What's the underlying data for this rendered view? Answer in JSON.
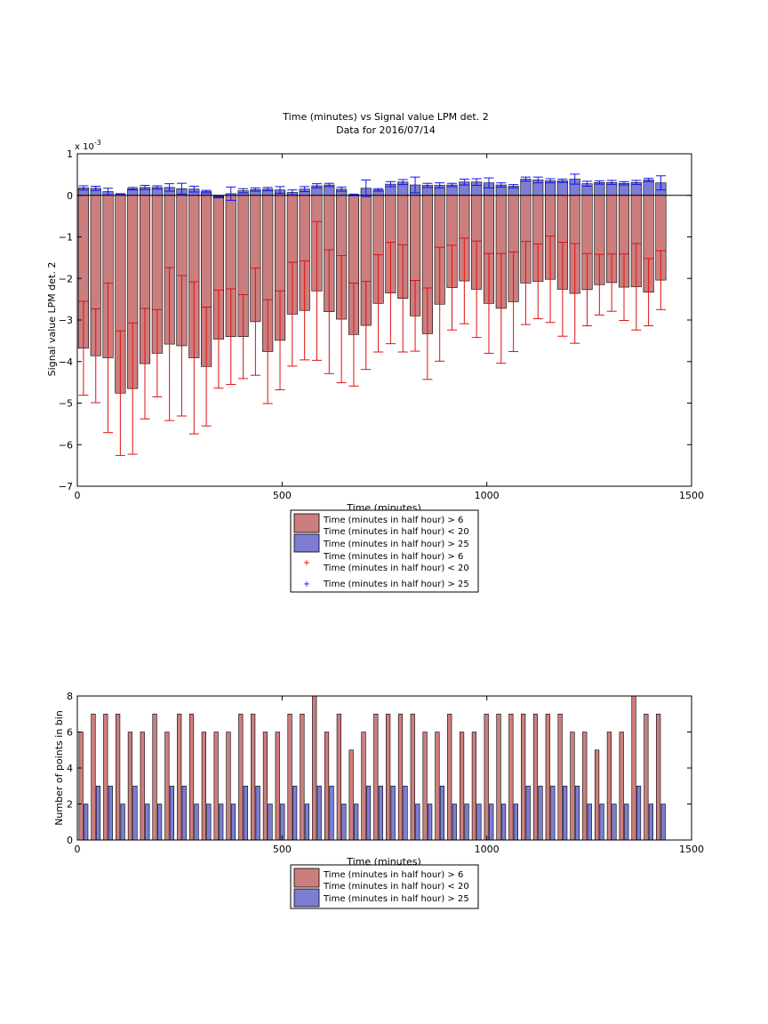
{
  "colors": {
    "red_fill": "#cc7e7e",
    "blue_fill": "#7d7dd4",
    "red_err": "#dd1111",
    "blue_err": "#1111ee",
    "edge": "#000000"
  },
  "chart_data": [
    {
      "type": "bar",
      "title": "Time (minutes) vs Signal value LPM det. 2",
      "subtitle": "Data for 2016/07/14",
      "xlabel": "Time (minutes)",
      "ylabel": "Signal value LPM det. 2",
      "y_multiplier": "x 10",
      "y_exponent": "-3",
      "xlim": [
        0,
        1500
      ],
      "ylim": [
        -7,
        1
      ],
      "xticks": [
        0,
        500,
        1000,
        1500
      ],
      "yticks": [
        -7,
        -6,
        -5,
        -4,
        -3,
        -2,
        -1,
        0,
        1
      ],
      "grid": false,
      "legend_position": "below",
      "legend": [
        {
          "kind": "patch",
          "color": "red",
          "lines": [
            "Time (minutes in half hour) > 6",
            "Time (minutes in half hour) < 20"
          ]
        },
        {
          "kind": "patch",
          "color": "blue",
          "lines": [
            "Time (minutes in half hour) > 25"
          ]
        },
        {
          "kind": "marker",
          "color": "red",
          "lines": [
            "Time (minutes in half hour) > 6",
            "Time (minutes in half hour) < 20"
          ]
        },
        {
          "kind": "marker",
          "color": "blue",
          "lines": [
            "Time (minutes in half hour) > 25"
          ]
        }
      ],
      "bar_width": 25,
      "x": [
        15,
        45,
        75,
        105,
        135,
        165,
        195,
        225,
        255,
        285,
        315,
        345,
        375,
        405,
        435,
        465,
        495,
        525,
        555,
        585,
        615,
        645,
        675,
        705,
        735,
        765,
        795,
        825,
        855,
        885,
        915,
        945,
        975,
        1005,
        1035,
        1065,
        1095,
        1125,
        1155,
        1185,
        1215,
        1245,
        1275,
        1305,
        1335,
        1365,
        1395,
        1425
      ],
      "series": [
        {
          "name": "Time (minutes in half hour) > 6 / Time (minutes in half hour) < 20",
          "color": "red",
          "values": [
            -3.68,
            -3.86,
            -3.91,
            -4.76,
            -4.65,
            -4.05,
            -3.8,
            -3.58,
            -3.62,
            -3.91,
            -4.12,
            -3.46,
            -3.4,
            -3.4,
            -3.04,
            -3.76,
            -3.49,
            -2.86,
            -2.77,
            -2.3,
            -2.8,
            -2.98,
            -3.35,
            -3.13,
            -2.6,
            -2.35,
            -2.48,
            -2.9,
            -3.33,
            -2.62,
            -2.22,
            -2.06,
            -2.26,
            -2.6,
            -2.72,
            -2.56,
            -2.11,
            -2.07,
            -2.02,
            -2.26,
            -2.36,
            -2.27,
            -2.15,
            -2.1,
            -2.21,
            -2.2,
            -2.33,
            -2.04
          ],
          "err": [
            1.13,
            1.13,
            1.8,
            1.5,
            1.58,
            1.33,
            1.05,
            1.84,
            1.69,
            1.83,
            1.43,
            1.18,
            1.15,
            1.01,
            1.29,
            1.25,
            1.19,
            1.25,
            1.19,
            1.67,
            1.49,
            1.53,
            1.24,
            1.06,
            1.17,
            1.22,
            1.29,
            0.85,
            1.1,
            1.37,
            1.02,
            1.03,
            1.16,
            1.2,
            1.32,
            1.2,
            1.0,
            0.9,
            1.04,
            1.13,
            1.2,
            0.87,
            0.73,
            0.69,
            0.8,
            1.04,
            0.81,
            0.71
          ]
        },
        {
          "name": "Time (minutes in half hour) > 25",
          "color": "blue",
          "values": [
            0.18,
            0.17,
            0.09,
            0.02,
            0.16,
            0.19,
            0.19,
            0.19,
            0.16,
            0.15,
            0.09,
            -0.04,
            0.04,
            0.11,
            0.14,
            0.15,
            0.13,
            0.07,
            0.15,
            0.23,
            0.25,
            0.15,
            0.01,
            0.17,
            0.13,
            0.27,
            0.32,
            0.25,
            0.24,
            0.24,
            0.25,
            0.32,
            0.32,
            0.3,
            0.25,
            0.22,
            0.39,
            0.37,
            0.35,
            0.35,
            0.39,
            0.28,
            0.31,
            0.31,
            0.29,
            0.31,
            0.37,
            0.3
          ],
          "err": [
            0.05,
            0.05,
            0.08,
            0.02,
            0.03,
            0.05,
            0.04,
            0.09,
            0.13,
            0.07,
            0.03,
            0.02,
            0.16,
            0.05,
            0.04,
            0.04,
            0.08,
            0.06,
            0.06,
            0.05,
            0.04,
            0.05,
            0.02,
            0.2,
            0.03,
            0.06,
            0.06,
            0.19,
            0.05,
            0.06,
            0.04,
            0.07,
            0.08,
            0.12,
            0.05,
            0.04,
            0.05,
            0.07,
            0.05,
            0.04,
            0.12,
            0.06,
            0.04,
            0.05,
            0.04,
            0.05,
            0.04,
            0.17
          ]
        }
      ]
    },
    {
      "type": "bar",
      "title": "",
      "xlabel": "Time (minutes)",
      "ylabel": "Number of points in bin",
      "xlim": [
        0,
        1500
      ],
      "ylim": [
        0,
        8
      ],
      "xticks": [
        0,
        500,
        1000,
        1500
      ],
      "yticks": [
        0,
        2,
        4,
        6,
        8
      ],
      "grid": false,
      "legend_position": "below",
      "legend": [
        {
          "kind": "patch",
          "color": "red",
          "lines": [
            "Time (minutes in half hour) > 6",
            "Time (minutes in half hour) < 20"
          ]
        },
        {
          "kind": "patch",
          "color": "blue",
          "lines": [
            "Time (minutes in half hour) > 25"
          ]
        }
      ],
      "bar_width": 10,
      "offset": 6,
      "x": [
        15,
        45,
        75,
        105,
        135,
        165,
        195,
        225,
        255,
        285,
        315,
        345,
        375,
        405,
        435,
        465,
        495,
        525,
        555,
        585,
        615,
        645,
        675,
        705,
        735,
        765,
        795,
        825,
        855,
        885,
        915,
        945,
        975,
        1005,
        1035,
        1065,
        1095,
        1125,
        1155,
        1185,
        1215,
        1245,
        1275,
        1305,
        1335,
        1365,
        1395,
        1425
      ],
      "series": [
        {
          "name": "Time (minutes in half hour) > 6 / Time (minutes in half hour) < 20",
          "color": "red",
          "values": [
            6,
            7,
            7,
            7,
            6,
            6,
            7,
            6,
            7,
            7,
            6,
            6,
            6,
            7,
            7,
            6,
            6,
            7,
            7,
            8,
            6,
            7,
            5,
            6,
            7,
            7,
            7,
            7,
            6,
            6,
            7,
            6,
            6,
            7,
            7,
            7,
            7,
            7,
            7,
            7,
            6,
            6,
            5,
            6,
            6,
            8,
            7,
            7
          ]
        },
        {
          "name": "Time (minutes in half hour) > 25",
          "color": "blue",
          "values": [
            2,
            3,
            3,
            2,
            3,
            2,
            2,
            3,
            3,
            2,
            2,
            2,
            2,
            3,
            3,
            2,
            2,
            3,
            2,
            3,
            3,
            2,
            2,
            3,
            3,
            3,
            3,
            2,
            2,
            3,
            2,
            2,
            2,
            2,
            2,
            2,
            3,
            3,
            3,
            3,
            3,
            2,
            2,
            2,
            2,
            3,
            2,
            2
          ]
        }
      ]
    }
  ]
}
